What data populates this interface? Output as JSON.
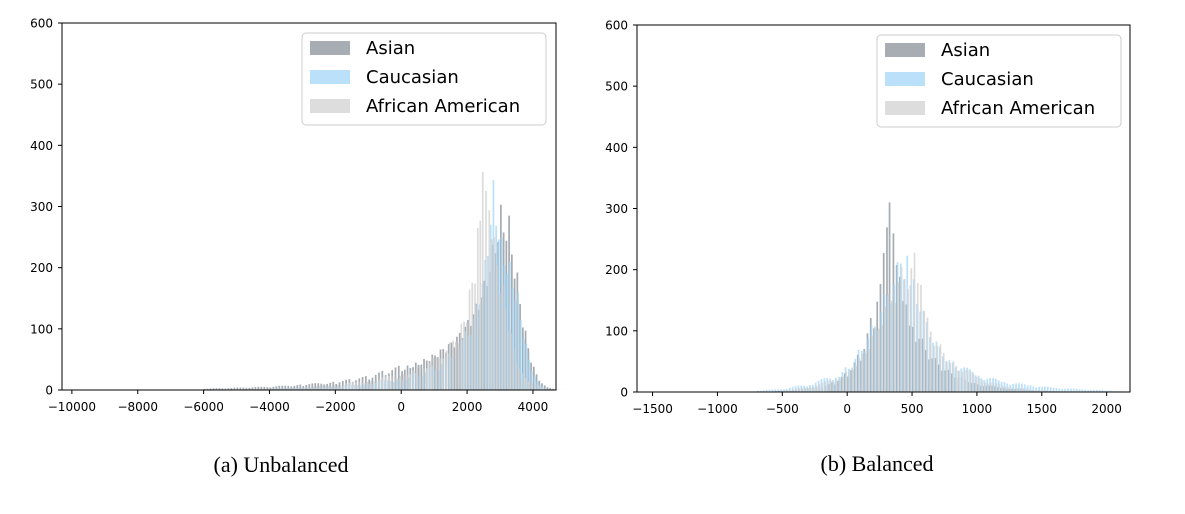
{
  "chart_data": [
    {
      "type": "bar",
      "caption": "(a) Unbalanced",
      "xlim": [
        -10300,
        4700
      ],
      "ylim": [
        0,
        600
      ],
      "xticks": [
        -10000,
        -8000,
        -6000,
        -4000,
        -2000,
        0,
        2000,
        4000
      ],
      "xtick_labels": [
        "−10000",
        "−8000",
        "−6000",
        "−4000",
        "−2000",
        "0",
        "2000",
        "4000"
      ],
      "yticks": [
        0,
        100,
        200,
        300,
        400,
        500,
        600
      ],
      "ytick_labels": [
        "0",
        "100",
        "200",
        "300",
        "400",
        "500",
        "600"
      ],
      "legend_position": "top-right",
      "grid": false,
      "series": [
        {
          "name": "Asian",
          "color": "#8e969e",
          "x": [
            -6000,
            -4000,
            -3000,
            -2000,
            -1500,
            -1000,
            -500,
            0,
            250,
            500,
            750,
            1000,
            1250,
            1500,
            1750,
            2000,
            2250,
            2500,
            2750,
            3000,
            3250,
            3500,
            3750,
            4000,
            4250,
            4500
          ],
          "values": [
            2,
            5,
            8,
            12,
            16,
            20,
            28,
            35,
            40,
            45,
            52,
            60,
            70,
            80,
            95,
            115,
            140,
            175,
            230,
            290,
            270,
            180,
            90,
            35,
            10,
            3
          ]
        },
        {
          "name": "Caucasian",
          "color": "#a8d8f8",
          "x": [
            -4000,
            -2000,
            -1000,
            0,
            500,
            1000,
            1500,
            2000,
            2250,
            2500,
            2750,
            3000,
            3250,
            3500,
            3750,
            4000,
            4250,
            4500
          ],
          "values": [
            2,
            5,
            10,
            18,
            25,
            35,
            55,
            90,
            140,
            210,
            335,
            240,
            200,
            150,
            70,
            20,
            5,
            1
          ]
        },
        {
          "name": "African American",
          "color": "#d3d3d3",
          "x": [
            -5000,
            -3000,
            -2000,
            -1000,
            0,
            500,
            1000,
            1500,
            1750,
            2000,
            2250,
            2400,
            2500,
            2600,
            2750,
            3000,
            3250,
            3500,
            4000,
            4500
          ],
          "values": [
            1,
            4,
            8,
            14,
            25,
            35,
            50,
            75,
            100,
            150,
            240,
            320,
            290,
            260,
            220,
            150,
            80,
            30,
            8,
            1
          ]
        }
      ]
    },
    {
      "type": "bar",
      "caption": "(b) Balanced",
      "xlim": [
        -1620,
        2180
      ],
      "ylim": [
        0,
        600
      ],
      "xticks": [
        -1500,
        -1000,
        -500,
        0,
        500,
        1000,
        1500,
        2000
      ],
      "xtick_labels": [
        "−1500",
        "−1000",
        "−500",
        "0",
        "500",
        "1000",
        "1500",
        "2000"
      ],
      "yticks": [
        0,
        100,
        200,
        300,
        400,
        500,
        600
      ],
      "ytick_labels": [
        "0",
        "100",
        "200",
        "300",
        "400",
        "500",
        "600"
      ],
      "legend_position": "top-right",
      "grid": false,
      "series": [
        {
          "name": "Asian",
          "color": "#8e969e",
          "x": [
            -600,
            -400,
            -200,
            -100,
            0,
            100,
            200,
            250,
            300,
            320,
            350,
            400,
            450,
            500,
            600,
            700,
            800,
            900,
            1000,
            1200,
            1400,
            1600
          ],
          "values": [
            1,
            3,
            8,
            15,
            30,
            60,
            120,
            200,
            300,
            340,
            280,
            200,
            150,
            110,
            70,
            45,
            30,
            20,
            12,
            6,
            3,
            1
          ]
        },
        {
          "name": "Caucasian",
          "color": "#a8d8f8",
          "x": [
            -700,
            -500,
            -300,
            -100,
            0,
            100,
            200,
            300,
            400,
            450,
            500,
            600,
            700,
            800,
            1000,
            1200,
            1400,
            1600,
            1800,
            2000
          ],
          "values": [
            2,
            5,
            12,
            25,
            40,
            70,
            110,
            160,
            210,
            220,
            180,
            110,
            70,
            45,
            25,
            15,
            10,
            6,
            4,
            2
          ]
        },
        {
          "name": "African American",
          "color": "#d3d3d3",
          "x": [
            -500,
            -300,
            -100,
            0,
            100,
            200,
            300,
            400,
            500,
            550,
            600,
            700,
            800,
            1000,
            1200,
            1500
          ],
          "values": [
            2,
            8,
            20,
            35,
            60,
            100,
            150,
            190,
            210,
            160,
            110,
            70,
            45,
            20,
            8,
            2
          ]
        }
      ]
    }
  ]
}
